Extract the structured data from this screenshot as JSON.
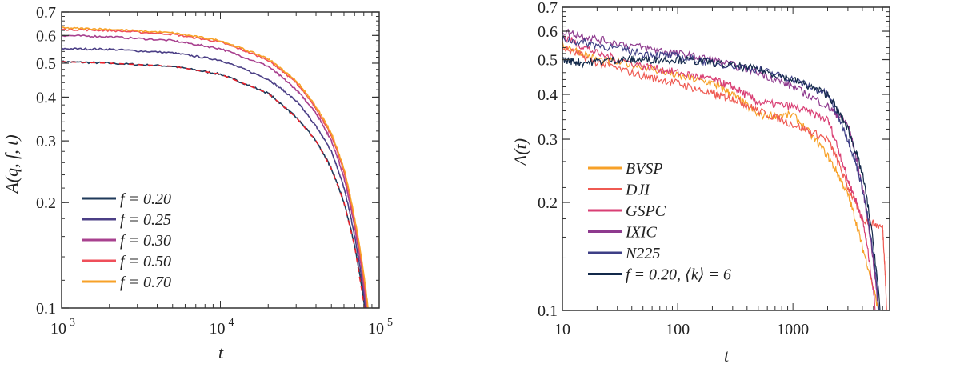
{
  "chart_data": [
    {
      "type": "line",
      "xscale": "log",
      "yscale": "log",
      "xlabel": "t",
      "ylabel": "A(q, f, t)",
      "xlim": [
        1000,
        100000
      ],
      "ylim": [
        0.1,
        0.7
      ],
      "xticks": [
        {
          "v": 1000,
          "base": "10",
          "exp": "3"
        },
        {
          "v": 10000,
          "base": "10",
          "exp": "4"
        },
        {
          "v": 100000,
          "base": "10",
          "exp": "5"
        }
      ],
      "yticks": [
        {
          "v": 0.1,
          "label": "0.1"
        },
        {
          "v": 0.2,
          "label": "0.2"
        },
        {
          "v": 0.3,
          "label": "0.3"
        },
        {
          "v": 0.4,
          "label": "0.4"
        },
        {
          "v": 0.5,
          "label": "0.5"
        },
        {
          "v": 0.6,
          "label": "0.6"
        },
        {
          "v": 0.7,
          "label": "0.7"
        }
      ],
      "legend_position": "lower-left",
      "series": [
        {
          "name": "f = 0.20",
          "color": "#1f3a5a",
          "x": [
            1000,
            2000,
            5000,
            10000,
            20000,
            30000,
            40000,
            50000,
            60000,
            70000,
            81000
          ],
          "y": [
            0.505,
            0.5,
            0.49,
            0.465,
            0.41,
            0.35,
            0.3,
            0.25,
            0.2,
            0.15,
            0.1
          ]
        },
        {
          "name": "f = 0.25",
          "color": "#4b3f86",
          "x": [
            1000,
            2000,
            5000,
            10000,
            20000,
            30000,
            40000,
            50000,
            60000,
            70000,
            82000
          ],
          "y": [
            0.55,
            0.548,
            0.535,
            0.51,
            0.45,
            0.39,
            0.33,
            0.28,
            0.22,
            0.16,
            0.1
          ]
        },
        {
          "name": "f = 0.30",
          "color": "#a8418f",
          "x": [
            1000,
            2000,
            5000,
            10000,
            20000,
            30000,
            40000,
            50000,
            60000,
            70000,
            83000
          ],
          "y": [
            0.6,
            0.595,
            0.58,
            0.55,
            0.49,
            0.42,
            0.36,
            0.3,
            0.235,
            0.17,
            0.1
          ]
        },
        {
          "name": "f = 0.50",
          "color": "#ef4f5a",
          "x": [
            1000,
            2000,
            5000,
            10000,
            20000,
            30000,
            40000,
            50000,
            60000,
            70000,
            84000
          ],
          "y": [
            0.625,
            0.62,
            0.605,
            0.575,
            0.51,
            0.44,
            0.37,
            0.31,
            0.245,
            0.175,
            0.1
          ]
        },
        {
          "name": "f = 0.70",
          "color": "#f7a128",
          "x": [
            1000,
            2000,
            5000,
            10000,
            20000,
            30000,
            40000,
            50000,
            60000,
            70000,
            85000
          ],
          "y": [
            0.63,
            0.625,
            0.61,
            0.58,
            0.515,
            0.445,
            0.375,
            0.315,
            0.25,
            0.18,
            0.1
          ]
        }
      ],
      "fit": {
        "color": "#e8202a",
        "style": "dashed",
        "of": "f = 0.20"
      }
    },
    {
      "type": "line",
      "xscale": "log",
      "yscale": "log",
      "xlabel": "t",
      "ylabel": "A(t)",
      "xlim": [
        10,
        6900
      ],
      "ylim": [
        0.1,
        0.7
      ],
      "xticks": [
        {
          "v": 10,
          "label": "10"
        },
        {
          "v": 100,
          "label": "100"
        },
        {
          "v": 1000,
          "label": "1000"
        }
      ],
      "yticks": [
        {
          "v": 0.1,
          "label": "0.1"
        },
        {
          "v": 0.2,
          "label": "0.2"
        },
        {
          "v": 0.3,
          "label": "0.3"
        },
        {
          "v": 0.4,
          "label": "0.4"
        },
        {
          "v": 0.5,
          "label": "0.5"
        },
        {
          "v": 0.6,
          "label": "0.6"
        },
        {
          "v": 0.7,
          "label": "0.7"
        }
      ],
      "legend_position": "lower-left",
      "series": [
        {
          "name": "BVSP",
          "color": "#f7a128",
          "x": [
            10,
            20,
            50,
            100,
            200,
            300,
            500,
            1000,
            2000,
            3000,
            4000,
            5500
          ],
          "y": [
            0.55,
            0.5,
            0.48,
            0.45,
            0.43,
            0.4,
            0.35,
            0.35,
            0.27,
            0.21,
            0.15,
            0.1
          ]
        },
        {
          "name": "DJI",
          "color": "#ef5a52",
          "x": [
            10,
            20,
            50,
            100,
            200,
            300,
            500,
            1000,
            2000,
            3000,
            4000,
            6000,
            6500
          ],
          "y": [
            0.54,
            0.49,
            0.45,
            0.43,
            0.4,
            0.39,
            0.36,
            0.33,
            0.3,
            0.22,
            0.18,
            0.17,
            0.1
          ]
        },
        {
          "name": "GSPC",
          "color": "#d93f74",
          "x": [
            10,
            20,
            50,
            100,
            200,
            300,
            500,
            1000,
            2000,
            3000,
            4000,
            5200
          ],
          "y": [
            0.58,
            0.52,
            0.48,
            0.46,
            0.44,
            0.42,
            0.38,
            0.37,
            0.34,
            0.23,
            0.18,
            0.1
          ]
        },
        {
          "name": "IXIC",
          "color": "#8e3a8e",
          "x": [
            10,
            20,
            50,
            100,
            200,
            500,
            1000,
            2000,
            3000,
            4000,
            5500
          ],
          "y": [
            0.6,
            0.57,
            0.54,
            0.52,
            0.5,
            0.46,
            0.42,
            0.37,
            0.33,
            0.22,
            0.1
          ]
        },
        {
          "name": "N225",
          "color": "#3e3f86",
          "x": [
            10,
            20,
            50,
            100,
            200,
            500,
            1000,
            2000,
            3000,
            4000,
            5600
          ],
          "y": [
            0.57,
            0.55,
            0.52,
            0.51,
            0.49,
            0.47,
            0.44,
            0.4,
            0.3,
            0.22,
            0.1
          ]
        },
        {
          "name": "f = 0.20, ⟨k⟩ = 6",
          "color": "#13294a",
          "x": [
            10,
            15,
            30,
            50,
            100,
            200,
            500,
            1000,
            2000,
            3000,
            4000,
            5700
          ],
          "y": [
            0.5,
            0.49,
            0.5,
            0.5,
            0.5,
            0.49,
            0.47,
            0.44,
            0.4,
            0.32,
            0.24,
            0.1
          ]
        }
      ]
    }
  ]
}
